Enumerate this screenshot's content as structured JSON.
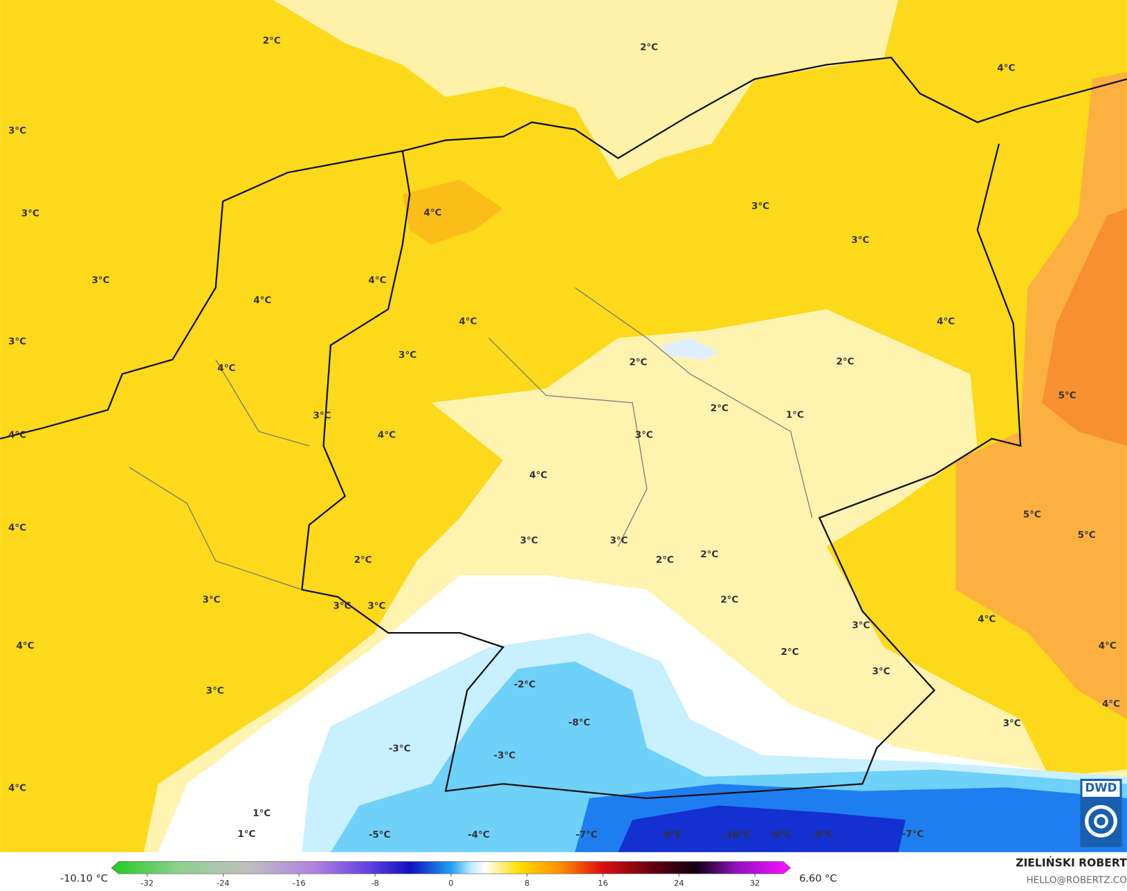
{
  "map_labels": [
    "2°C",
    "2°C",
    "4°C",
    "3°C",
    "3°C",
    "4°C",
    "3°C",
    "3°C",
    "3°C",
    "4°C",
    "4°C",
    "4°C",
    "4°C",
    "3°C",
    "3°C",
    "2°C",
    "2°C",
    "4°C",
    "5°C",
    "2°C",
    "1°C",
    "3°C",
    "4°C",
    "4°C",
    "3°C",
    "4°C",
    "5°C",
    "4°C",
    "5°C",
    "3°C",
    "3°C",
    "2°C",
    "2°C",
    "2°C",
    "2°C",
    "3°C",
    "3°C",
    "3°C",
    "4°C",
    "3°C",
    "4°C",
    "2°C",
    "4°C",
    "3°C",
    "-2°C",
    "3°C",
    "4°C",
    "-8°C",
    "3°C",
    "-3°C",
    "-3°C",
    "4°C",
    "1°C",
    "1°C",
    "-5°C",
    "-4°C",
    "-7°C",
    "-8°C",
    "-10°C",
    "-9°C",
    "-9°C",
    "-7°C"
  ],
  "colorbar": {
    "clim": [
      -35,
      35
    ],
    "cticks": [
      -32,
      -24,
      -16,
      -8,
      0,
      8,
      16,
      24,
      32
    ],
    "min_label": "-10.10 °C",
    "max_label": "6.60 °C"
  },
  "author": "ZIELIŃSKI ROBERT",
  "email": "HELLO@ROBERTZ.CO",
  "logo": "DWD"
}
